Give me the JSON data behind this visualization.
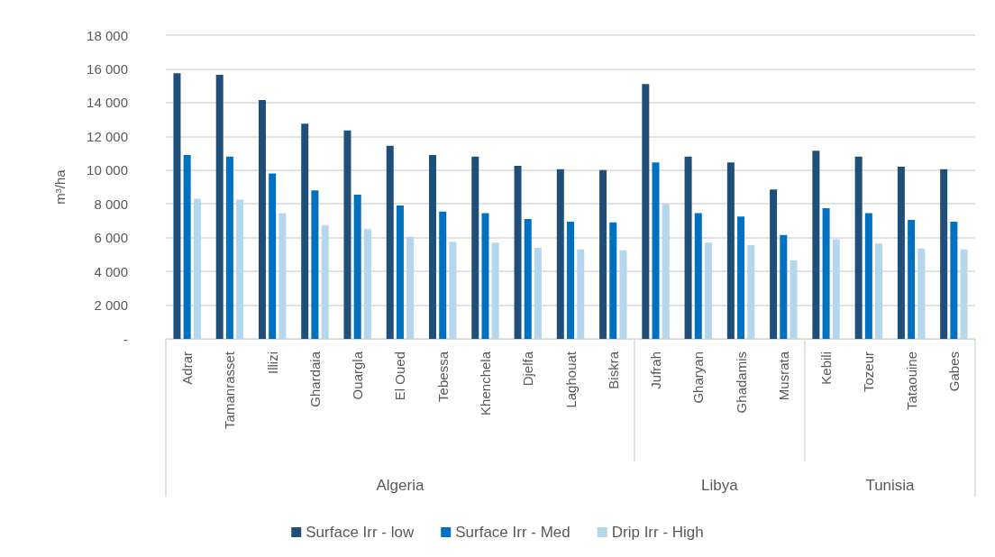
{
  "chart_data": {
    "type": "bar",
    "ylabel": "m³/ha",
    "categories": [
      "Adrar",
      "Tamanrasset",
      "Illizi",
      "Ghardaia",
      "Ouargla",
      "El Oued",
      "Tebessa",
      "Khenchela",
      "Djelfa",
      "Laghouat",
      "Biskra",
      "Jufrah",
      "Gharyan",
      "Ghadamis",
      "Musrata",
      "Kebili",
      "Tozeur",
      "Tataouine",
      "Gabes"
    ],
    "series": [
      {
        "name": "Surface Irr - low",
        "color": "#1f4e79",
        "values": [
          15750,
          15650,
          14150,
          12750,
          12350,
          11450,
          10900,
          10800,
          10250,
          10050,
          10000,
          15100,
          10800,
          10450,
          8850,
          11150,
          10800,
          10200,
          10050
        ]
      },
      {
        "name": "Surface Irr - Med",
        "color": "#0070c0",
        "values": [
          10900,
          10800,
          9800,
          8800,
          8550,
          7900,
          7550,
          7450,
          7100,
          6950,
          6900,
          10450,
          7450,
          7250,
          6150,
          7750,
          7450,
          7050,
          6950
        ]
      },
      {
        "name": "Drip Irr - High",
        "color": "#b4d7ee",
        "values": [
          8300,
          8250,
          7450,
          6750,
          6500,
          6050,
          5750,
          5700,
          5400,
          5300,
          5250,
          8000,
          5700,
          5550,
          4650,
          5900,
          5650,
          5350,
          5300
        ]
      }
    ],
    "ylim": [
      0,
      18000
    ],
    "yticks": [
      {
        "value": 0,
        "label": "-"
      },
      {
        "value": 2000,
        "label": "2 000"
      },
      {
        "value": 4000,
        "label": "4 000"
      },
      {
        "value": 6000,
        "label": "6 000"
      },
      {
        "value": 8000,
        "label": "8 000"
      },
      {
        "value": 10000,
        "label": "10 000"
      },
      {
        "value": 12000,
        "label": "12 000"
      },
      {
        "value": 14000,
        "label": "14 000"
      },
      {
        "value": 16000,
        "label": "16 000"
      },
      {
        "value": 18000,
        "label": "18 000"
      }
    ],
    "annotations": [
      "Algeria",
      "Libya",
      "Tunisia"
    ],
    "grid": "y",
    "legend": "bottom"
  }
}
